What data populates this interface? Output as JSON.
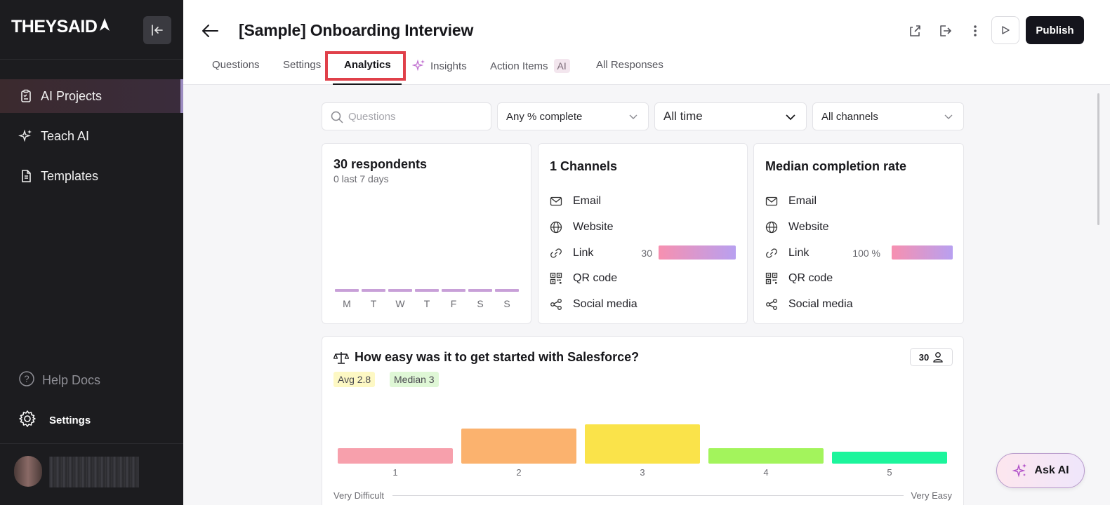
{
  "sidebar": {
    "logo_text": "THEYSAID",
    "items": [
      {
        "label": "AI Projects",
        "icon": "clipboard-icon",
        "active": true
      },
      {
        "label": "Teach AI",
        "icon": "sparkle-icon",
        "active": false
      },
      {
        "label": "Templates",
        "icon": "document-icon",
        "active": false
      }
    ],
    "help_label": "Help Docs",
    "settings_label": "Settings"
  },
  "header": {
    "title": "[Sample] Onboarding Interview",
    "publish_label": "Publish",
    "tabs": [
      {
        "label": "Questions"
      },
      {
        "label": "Settings"
      },
      {
        "label": "Analytics",
        "active": true
      },
      {
        "label": "Insights"
      },
      {
        "label": "Action Items",
        "badge": "AI"
      },
      {
        "label": "All Responses"
      }
    ]
  },
  "filters": {
    "search_placeholder": "Questions",
    "completion": "Any % complete",
    "time": "All time",
    "channels": "All channels"
  },
  "respondents_card": {
    "title": "30 respondents",
    "subtitle": "0 last 7 days",
    "days": [
      "M",
      "T",
      "W",
      "T",
      "F",
      "S",
      "S"
    ],
    "daily_counts": [
      0,
      0,
      0,
      0,
      0,
      0,
      0
    ]
  },
  "channels_card": {
    "title": "1 Channels",
    "rows": [
      {
        "label": "Email",
        "icon": "mail-icon",
        "value": ""
      },
      {
        "label": "Website",
        "icon": "globe-icon",
        "value": ""
      },
      {
        "label": "Link",
        "icon": "link-icon",
        "value": "30"
      },
      {
        "label": "QR code",
        "icon": "qr-icon",
        "value": ""
      },
      {
        "label": "Social media",
        "icon": "share-icon",
        "value": ""
      }
    ]
  },
  "completion_card": {
    "title": "Median completion rate",
    "rows": [
      {
        "label": "Email",
        "icon": "mail-icon",
        "value": ""
      },
      {
        "label": "Website",
        "icon": "globe-icon",
        "value": ""
      },
      {
        "label": "Link",
        "icon": "link-icon",
        "value": "100 %"
      },
      {
        "label": "QR code",
        "icon": "qr-icon",
        "value": ""
      },
      {
        "label": "Social media",
        "icon": "share-icon",
        "value": ""
      }
    ]
  },
  "question_card": {
    "title": "How easy was it to get started with Salesforce?",
    "response_count": "30",
    "avg_label": "Avg 2.8",
    "median_label": "Median 3",
    "scale_min_label": "Very Difficult",
    "scale_max_label": "Very Easy",
    "colors": [
      "#f7a0ac",
      "#fbb26e",
      "#fae34a",
      "#a3f45c",
      "#1cf59c"
    ]
  },
  "chart_data": {
    "type": "bar",
    "categories": [
      "1",
      "2",
      "3",
      "4",
      "5"
    ],
    "values": [
      4,
      9,
      10,
      4,
      3
    ],
    "xlabel": "",
    "ylabel": "",
    "grid": false
  },
  "ask_ai_label": "Ask AI"
}
